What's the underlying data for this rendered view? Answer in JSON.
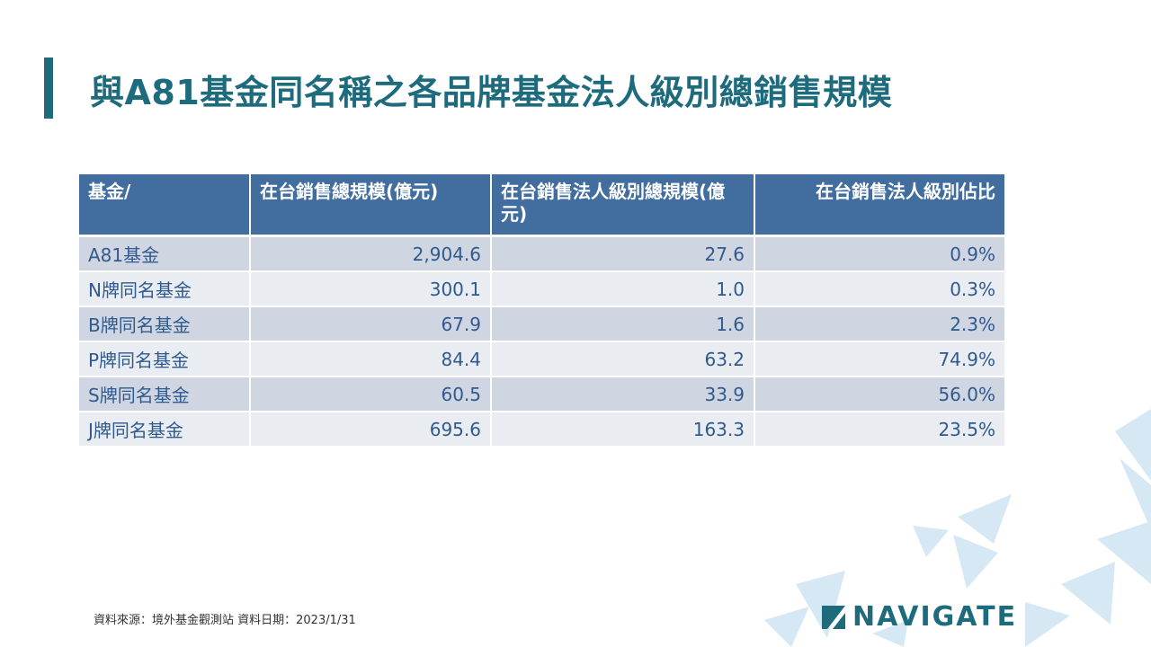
{
  "title": "與A81基金同名稱之各品牌基金法人級別總銷售規模",
  "table": {
    "headers": [
      "基金/",
      "在台銷售總規模(億元)",
      "在台銷售法人級別總規模(億元)",
      "在台銷售法人級別佔比"
    ],
    "rows": [
      [
        "A81基金",
        "2,904.6",
        "27.6",
        "0.9%"
      ],
      [
        "N牌同名基金",
        "300.1",
        "1.0",
        "0.3%"
      ],
      [
        "B牌同名基金",
        "67.9",
        "1.6",
        "2.3%"
      ],
      [
        "P牌同名基金",
        "84.4",
        "63.2",
        "74.9%"
      ],
      [
        "S牌同名基金",
        "60.5",
        "33.9",
        "56.0%"
      ],
      [
        "J牌同名基金",
        "695.6",
        "163.3",
        "23.5%"
      ]
    ]
  },
  "footer": {
    "source": "資料來源：境外基金觀測站  資料日期：2023/1/31"
  },
  "logo": {
    "text": "NAVIGATE",
    "icon": "navigate-sail-icon"
  },
  "colors": {
    "title": "#1d6b7c",
    "header_bg": "#426e9f",
    "row_odd": "#cfd5e1",
    "row_even": "#e9ecf1",
    "cell_text": "#2f5a8f",
    "decoration": "#d6e8f3"
  }
}
